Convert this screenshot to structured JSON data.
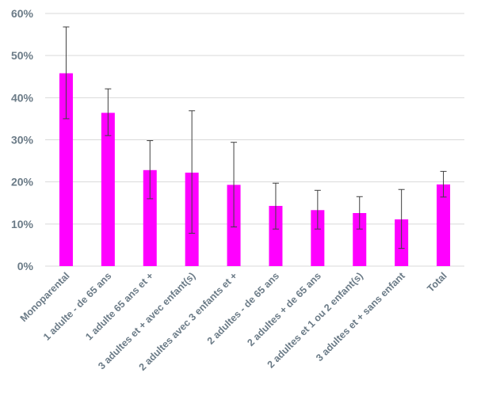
{
  "chart_data": {
    "type": "bar",
    "title": "",
    "xlabel": "",
    "ylabel": "",
    "ylim": [
      0,
      60
    ],
    "ytick_step": 10,
    "ytick_format": "percent",
    "grid": true,
    "bar_color": "#ff00ff",
    "error_color": "#404040",
    "grid_color": "#d9d9d9",
    "categories": [
      "Monoparental",
      "1 adulte - de 65 ans",
      "1 adulte 65 ans et +",
      "3 adultes et + avec enfant(s)",
      "2 adultes avec 3 enfants et +",
      "2 adultes - de 65 ans",
      "2 adultes + de 65 ans",
      "2 adultes et 1 ou 2 enfant(s)",
      "3 adultes et + sans enfant",
      "Total"
    ],
    "values": [
      45.8,
      36.4,
      22.8,
      22.2,
      19.3,
      14.3,
      13.3,
      12.6,
      11.1,
      19.4
    ],
    "error_low": [
      35.0,
      31.0,
      16.0,
      7.8,
      9.3,
      8.8,
      8.8,
      8.8,
      4.2,
      16.4
    ],
    "error_high": [
      56.8,
      42.1,
      29.8,
      36.9,
      29.4,
      19.7,
      18.0,
      16.5,
      18.2,
      22.5
    ]
  }
}
